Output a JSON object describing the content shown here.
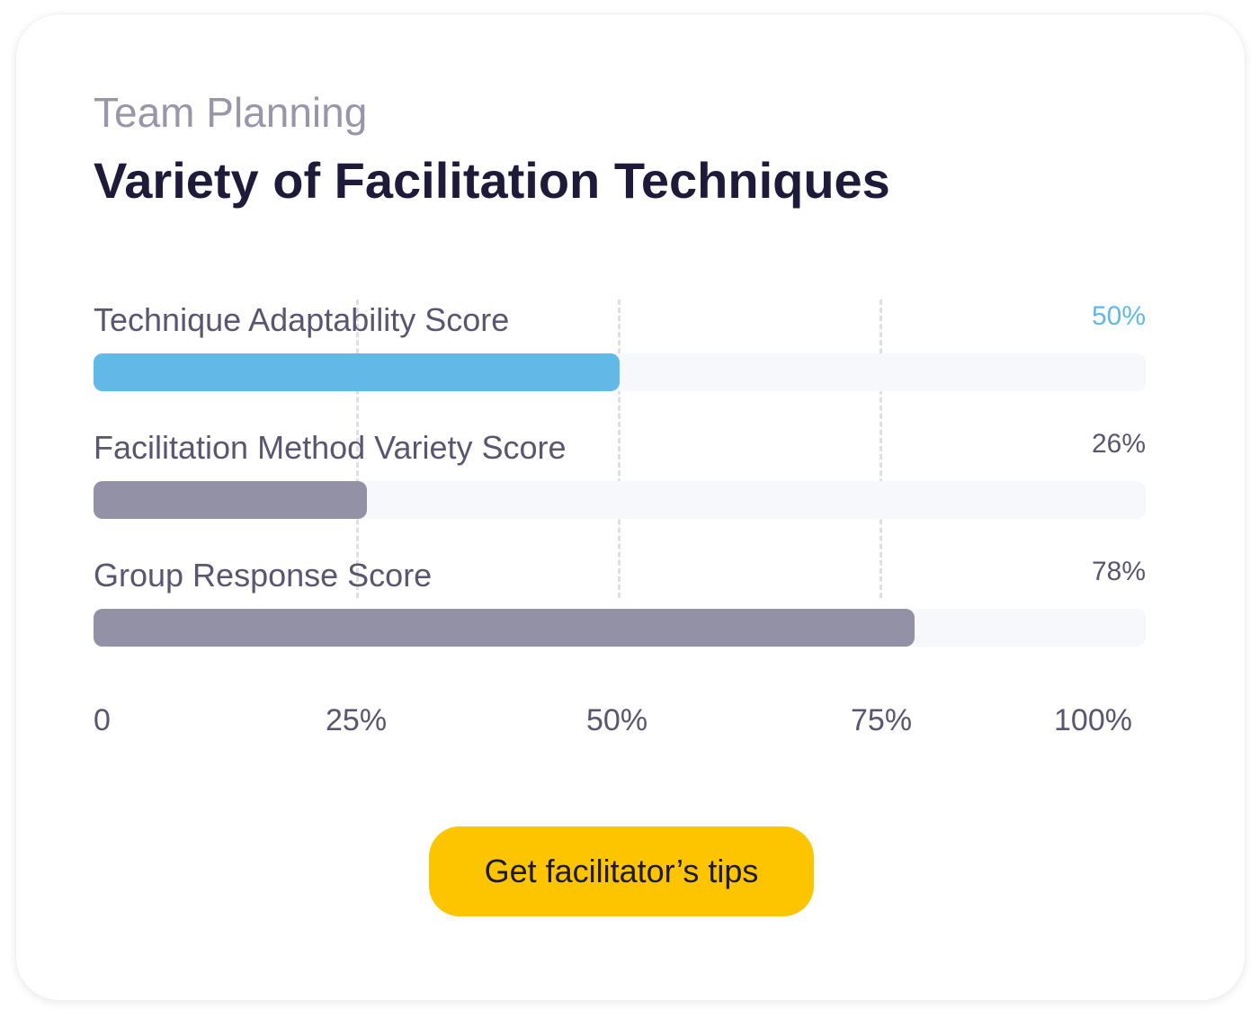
{
  "header": {
    "subtitle": "Team Planning",
    "title": "Variety of Facilitation Techniques"
  },
  "colors": {
    "highlight": "#62b8e6",
    "default_bar": "#9391a6",
    "default_value_text": "#595670",
    "track": "#f7f8fc",
    "button": "#fdc400"
  },
  "chart_data": {
    "type": "bar",
    "orientation": "horizontal",
    "categories": [
      "Technique Adaptability Score",
      "Facilitation Method Variety Score",
      "Group Response Score"
    ],
    "values": [
      50,
      26,
      78
    ],
    "value_labels": [
      "50%",
      "26%",
      "78%"
    ],
    "highlighted_index": 0,
    "xlim": [
      0,
      100
    ],
    "x_ticks": [
      0,
      25,
      50,
      75,
      100
    ],
    "x_tick_labels": [
      "0",
      "25%",
      "50%",
      "75%",
      "100%"
    ],
    "grid": true
  },
  "cta": {
    "label": "Get facilitator’s tips"
  }
}
